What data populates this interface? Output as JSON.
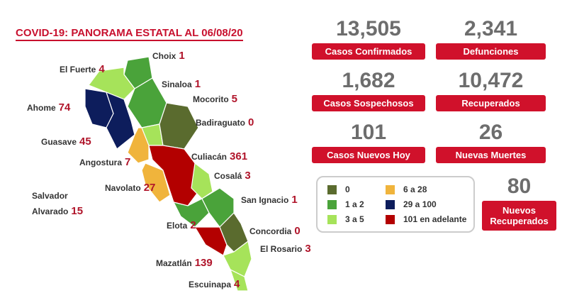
{
  "header": {
    "title": "COVID-19: PANORAMA ESTATAL AL 06/08/20"
  },
  "municipalities": [
    {
      "name": "Choix",
      "value": "1"
    },
    {
      "name": "El Fuerte",
      "value": "4"
    },
    {
      "name": "Sinaloa",
      "value": "1"
    },
    {
      "name": "Mocorito",
      "value": "5"
    },
    {
      "name": "Ahome",
      "value": "74"
    },
    {
      "name": "Badiraguato",
      "value": "0"
    },
    {
      "name": "Guasave",
      "value": "45"
    },
    {
      "name": "Culiacán",
      "value": "361"
    },
    {
      "name": "Angostura",
      "value": "7"
    },
    {
      "name": "Cosalá",
      "value": "3"
    },
    {
      "name": "Salvador Alvarado",
      "value": "15"
    },
    {
      "name": "Navolato",
      "value": "27"
    },
    {
      "name": "San Ignacio",
      "value": "1"
    },
    {
      "name": "Elota",
      "value": "2"
    },
    {
      "name": "Concordia",
      "value": "0"
    },
    {
      "name": "El Rosario",
      "value": "3"
    },
    {
      "name": "Mazatlán",
      "value": "139"
    },
    {
      "name": "Escuinapa",
      "value": "4"
    }
  ],
  "stats": [
    {
      "value": "13,505",
      "label": "Casos Confirmados"
    },
    {
      "value": "2,341",
      "label": "Defunciones"
    },
    {
      "value": "1,682",
      "label": "Casos Sospechosos"
    },
    {
      "value": "10,472",
      "label": "Recuperados"
    },
    {
      "value": "101",
      "label": "Casos Nuevos Hoy"
    },
    {
      "value": "26",
      "label": "Nuevas Muertes"
    },
    {
      "value": "80",
      "label": "Nuevos Recuperados"
    }
  ],
  "legend": [
    {
      "label": "0"
    },
    {
      "label": "1 a 2"
    },
    {
      "label": "3 a 5"
    },
    {
      "label": "6 a 28"
    },
    {
      "label": "29 a 100"
    },
    {
      "label": "101 en adelante"
    }
  ]
}
